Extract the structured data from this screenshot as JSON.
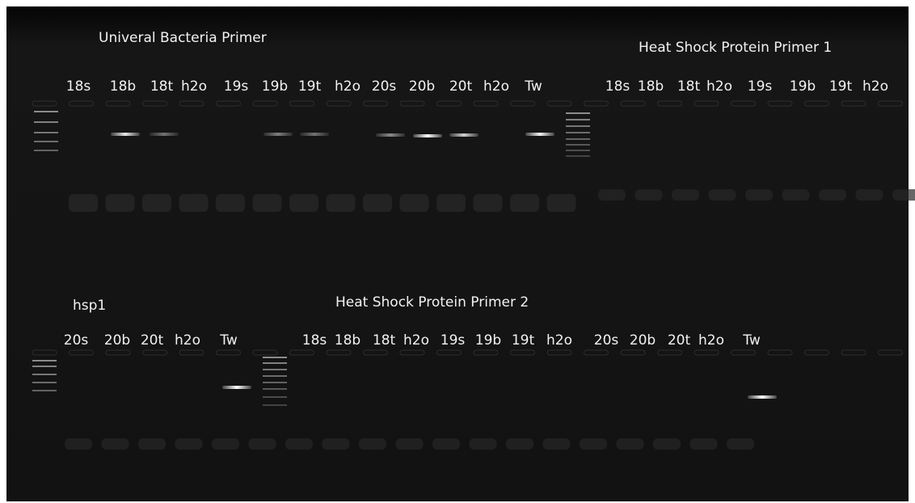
{
  "top": {
    "title_left": "Univeral Bacteria Primer",
    "title_right": "Heat Shock Protein Primer 1",
    "lanes": [
      "18s",
      "18b",
      "18t",
      "h2o",
      "19s",
      "19b",
      "19t",
      "h2o",
      "20s",
      "20b",
      "20t",
      "h2o",
      "Tw",
      "18s",
      "18b",
      "18t",
      "h2o",
      "19s",
      "19b",
      "19t",
      "h2o"
    ]
  },
  "bottom": {
    "title_left": "hsp1",
    "title_right": "Heat Shock Protein Primer 2",
    "lanes": [
      "20s",
      "20b",
      "20t",
      "h2o",
      "Tw",
      "18s",
      "18b",
      "18t",
      "h2o",
      "19s",
      "19b",
      "19t",
      "h2o",
      "20s",
      "20b",
      "20t",
      "h2o",
      "Tw"
    ]
  }
}
